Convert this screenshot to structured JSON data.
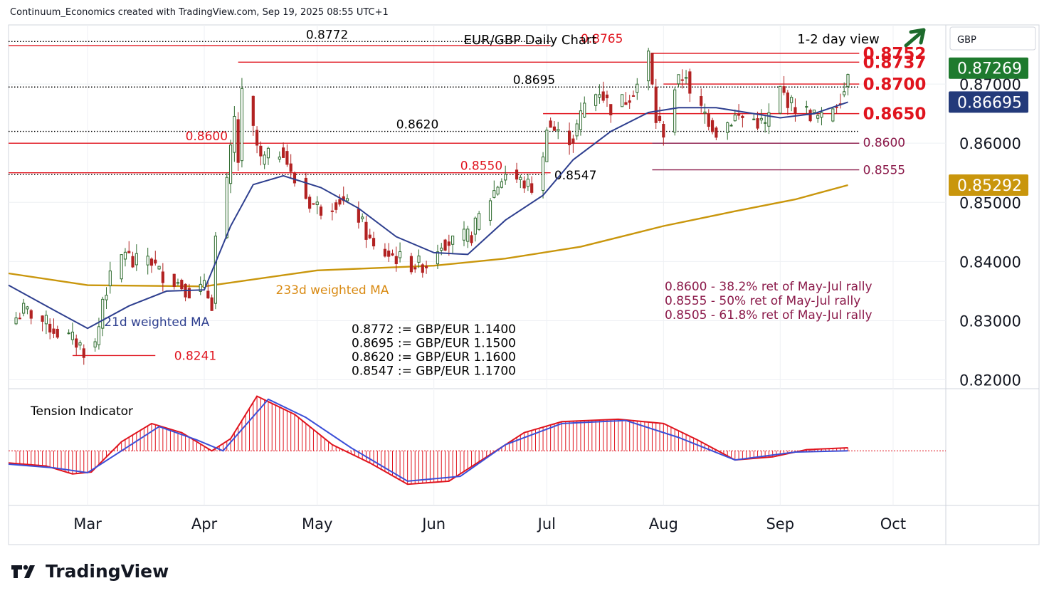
{
  "header": {
    "credit": "Continuum_Economics created with TradingView.com, Sep 19, 2025 08:55 UTC+1"
  },
  "brand": {
    "name": "TradingView"
  },
  "colors": {
    "up": "#2e6b2e",
    "down": "#b22222",
    "bull_fill": "#ffffff",
    "ma21": "#2e3f8f",
    "ma233": "#c9960c",
    "resistance": "#e0141e",
    "support_fib": "#8b1a4a",
    "tension_red": "#e0141e",
    "tension_blue": "#3b4fd8",
    "arrow": "#1d6b2c",
    "last_price_bg": "#1e7a2e",
    "ma21_bg": "#233a7a",
    "ma233_bg": "#c9960c"
  },
  "chart_data": {
    "type": "candlestick",
    "title": "EUR/GBP Daily Chart",
    "view_label": "1-2 day view",
    "view_icon": "up-arrow-icon",
    "currency_label": "GBP",
    "y_ticks": [
      "0.86000",
      "0.85000",
      "0.84000",
      "0.83000",
      "0.82000"
    ],
    "y_tick_values": [
      0.86,
      0.85,
      0.84,
      0.83,
      0.82
    ],
    "y_tick_partial": {
      "label": "0.87000",
      "value": 0.87
    },
    "ylim": [
      0.8185,
      0.88
    ],
    "x_ticks": [
      {
        "label": "Mar",
        "date": "2025-03-01"
      },
      {
        "label": "Apr",
        "date": "2025-04-01"
      },
      {
        "label": "May",
        "date": "2025-05-01"
      },
      {
        "label": "Jun",
        "date": "2025-06-01"
      },
      {
        "label": "Jul",
        "date": "2025-07-01"
      },
      {
        "label": "Aug",
        "date": "2025-08-01"
      },
      {
        "label": "Sep",
        "date": "2025-09-01"
      },
      {
        "label": "Oct",
        "date": "2025-10-01"
      }
    ],
    "xlim": [
      "2025-02-08",
      "2025-10-15"
    ],
    "price_badges": [
      {
        "label": "0.87269",
        "value": 0.87269,
        "kind": "last"
      },
      {
        "label": "0.86695",
        "value": 0.86695,
        "kind": "ma21"
      },
      {
        "label": "0.85292",
        "value": 0.85292,
        "kind": "ma233"
      }
    ],
    "series_labels": {
      "ma21": "21d weighted MA",
      "ma233": "233d weighted MA"
    },
    "levels": [
      {
        "label": "0.8772",
        "value": 0.8772,
        "style": "dotted",
        "from": "2025-02-08",
        "to": "2025-07-02",
        "label_date": "2025-04-28",
        "color": "#000000",
        "size": "m"
      },
      {
        "label": "0.8765",
        "value": 0.8765,
        "style": "solid",
        "from": "2025-02-08",
        "to": "2025-07-02",
        "label_date": "2025-07-10",
        "color": "#e0141e",
        "size": "m"
      },
      {
        "label": "0.8752",
        "value": 0.8752,
        "style": "solid",
        "from": "2025-07-29",
        "to": "2025-09-22",
        "label_date": "2025-09-23",
        "color": "#e0141e",
        "size": "l"
      },
      {
        "label": "0.8737",
        "value": 0.8737,
        "style": "solid",
        "from": "2025-04-10",
        "to": "2025-09-22",
        "label_date": "2025-09-23",
        "color": "#e0141e",
        "size": "l"
      },
      {
        "label": "0.8700",
        "value": 0.87,
        "style": "solid",
        "from": "2025-08-01",
        "to": "2025-09-22",
        "label_date": "2025-09-23",
        "color": "#e0141e",
        "size": "l"
      },
      {
        "label": "0.8695",
        "value": 0.8695,
        "style": "dotted",
        "from": "2025-02-08",
        "to": "2025-09-22",
        "label_date": "2025-06-22",
        "color": "#000000",
        "size": "m"
      },
      {
        "label": "0.8650",
        "value": 0.865,
        "style": "solid",
        "from": "2025-06-30",
        "to": "2025-09-22",
        "label_date": "2025-09-23",
        "color": "#e0141e",
        "size": "l"
      },
      {
        "label": "0.8620",
        "value": 0.862,
        "style": "dotted",
        "from": "2025-02-08",
        "to": "2025-09-22",
        "label_date": "2025-05-22",
        "color": "#000000",
        "size": "m"
      },
      {
        "label": "0.8600",
        "value": 0.86,
        "style": "solid",
        "from": "2025-02-08",
        "to": "2025-07-29",
        "label_date": "2025-03-27",
        "color": "#e0141e",
        "size": "m"
      },
      {
        "label": "0.8600",
        "value": 0.86,
        "style": "solid",
        "from": "2025-07-29",
        "to": "2025-09-22",
        "label_date": "2025-09-23",
        "color": "#8b1a4a",
        "size": "m"
      },
      {
        "label": "0.8555",
        "value": 0.8555,
        "style": "solid",
        "from": "2025-07-29",
        "to": "2025-09-22",
        "label_date": "2025-09-23",
        "color": "#8b1a4a",
        "size": "m"
      },
      {
        "label": "0.8550",
        "value": 0.855,
        "style": "solid",
        "from": "2025-02-08",
        "to": "2025-07-02",
        "label_date": "2025-06-08",
        "color": "#e0141e",
        "size": "m"
      },
      {
        "label": "0.8547",
        "value": 0.8547,
        "style": "dotted",
        "from": "2025-02-08",
        "to": "2025-07-01",
        "label_date": "2025-07-03",
        "color": "#000000",
        "size": "m"
      },
      {
        "label": "0.8241",
        "value": 0.8241,
        "style": "solid",
        "from": "2025-02-25",
        "to": "2025-03-19",
        "label_date": "2025-03-24",
        "color": "#e0141e",
        "size": "m"
      }
    ],
    "annotations_conversion": [
      "0.8772 := GBP/EUR 1.1400",
      "0.8695 := GBP/EUR 1.1500",
      "0.8620 := GBP/EUR 1.1600",
      "0.8547 := GBP/EUR 1.1700"
    ],
    "annotations_fib": [
      "0.8600 - 38.2% ret of May-Jul rally",
      "0.8555 - 50% ret of May-Jul rally",
      "0.8505 - 61.8% ret of May-Jul rally"
    ],
    "ohlc_anchors": [
      {
        "date": "2025-02-10",
        "close": 0.8305
      },
      {
        "date": "2025-02-12",
        "close": 0.8318
      },
      {
        "date": "2025-02-14",
        "close": 0.8312
      },
      {
        "date": "2025-02-18",
        "close": 0.8295
      },
      {
        "date": "2025-02-21",
        "close": 0.828
      },
      {
        "date": "2025-02-25",
        "close": 0.8268
      },
      {
        "date": "2025-02-27",
        "close": 0.8258
      },
      {
        "date": "2025-02-28",
        "close": 0.825
      },
      {
        "date": "2025-03-03",
        "close": 0.826
      },
      {
        "date": "2025-03-04",
        "close": 0.829
      },
      {
        "date": "2025-03-05",
        "close": 0.8338
      },
      {
        "date": "2025-03-07",
        "close": 0.837
      },
      {
        "date": "2025-03-11",
        "close": 0.842
      },
      {
        "date": "2025-03-13",
        "close": 0.8395
      },
      {
        "date": "2025-03-17",
        "close": 0.841
      },
      {
        "date": "2025-03-20",
        "close": 0.8382
      },
      {
        "date": "2025-03-25",
        "close": 0.8365
      },
      {
        "date": "2025-03-28",
        "close": 0.835
      },
      {
        "date": "2025-04-01",
        "close": 0.8355
      },
      {
        "date": "2025-04-03",
        "close": 0.833
      },
      {
        "date": "2025-04-04",
        "close": 0.844
      },
      {
        "date": "2025-04-07",
        "close": 0.853
      },
      {
        "date": "2025-04-09",
        "close": 0.864
      },
      {
        "date": "2025-04-10",
        "close": 0.857
      },
      {
        "date": "2025-04-11",
        "close": 0.868
      },
      {
        "date": "2025-04-14",
        "close": 0.862
      },
      {
        "date": "2025-04-16",
        "close": 0.857
      },
      {
        "date": "2025-04-22",
        "close": 0.859
      },
      {
        "date": "2025-04-24",
        "close": 0.8545
      },
      {
        "date": "2025-04-29",
        "close": 0.85
      },
      {
        "date": "2025-05-02",
        "close": 0.849
      },
      {
        "date": "2025-05-07",
        "close": 0.8505
      },
      {
        "date": "2025-05-12",
        "close": 0.8475
      },
      {
        "date": "2025-05-16",
        "close": 0.842
      },
      {
        "date": "2025-05-21",
        "close": 0.841
      },
      {
        "date": "2025-05-26",
        "close": 0.8395
      },
      {
        "date": "2025-05-30",
        "close": 0.8395
      },
      {
        "date": "2025-06-03",
        "close": 0.8435
      },
      {
        "date": "2025-06-06",
        "close": 0.8432
      },
      {
        "date": "2025-06-11",
        "close": 0.8445
      },
      {
        "date": "2025-06-13",
        "close": 0.8475
      },
      {
        "date": "2025-06-18",
        "close": 0.853
      },
      {
        "date": "2025-06-20",
        "close": 0.855
      },
      {
        "date": "2025-06-24",
        "close": 0.8535
      },
      {
        "date": "2025-06-27",
        "close": 0.8525
      },
      {
        "date": "2025-06-30",
        "close": 0.857
      },
      {
        "date": "2025-07-01",
        "close": 0.8635
      },
      {
        "date": "2025-07-04",
        "close": 0.8615
      },
      {
        "date": "2025-07-08",
        "close": 0.8608
      },
      {
        "date": "2025-07-11",
        "close": 0.8665
      },
      {
        "date": "2025-07-15",
        "close": 0.869
      },
      {
        "date": "2025-07-18",
        "close": 0.866
      },
      {
        "date": "2025-07-22",
        "close": 0.8675
      },
      {
        "date": "2025-07-25",
        "close": 0.87
      },
      {
        "date": "2025-07-28",
        "close": 0.875
      },
      {
        "date": "2025-07-30",
        "close": 0.864
      },
      {
        "date": "2025-08-01",
        "close": 0.862
      },
      {
        "date": "2025-08-04",
        "close": 0.8695
      },
      {
        "date": "2025-08-07",
        "close": 0.872
      },
      {
        "date": "2025-08-08",
        "close": 0.8675
      },
      {
        "date": "2025-08-12",
        "close": 0.865
      },
      {
        "date": "2025-08-15",
        "close": 0.862
      },
      {
        "date": "2025-08-20",
        "close": 0.8645
      },
      {
        "date": "2025-08-25",
        "close": 0.864
      },
      {
        "date": "2025-08-28",
        "close": 0.863
      },
      {
        "date": "2025-09-01",
        "close": 0.869
      },
      {
        "date": "2025-09-04",
        "close": 0.8665
      },
      {
        "date": "2025-09-09",
        "close": 0.865
      },
      {
        "date": "2025-09-12",
        "close": 0.864
      },
      {
        "date": "2025-09-16",
        "close": 0.867
      },
      {
        "date": "2025-09-18",
        "close": 0.869
      },
      {
        "date": "2025-09-19",
        "close": 0.87269
      }
    ],
    "ma21_anchors": [
      {
        "date": "2025-02-08",
        "value": 0.836
      },
      {
        "date": "2025-02-20",
        "value": 0.8318
      },
      {
        "date": "2025-03-01",
        "value": 0.8287
      },
      {
        "date": "2025-03-12",
        "value": 0.8325
      },
      {
        "date": "2025-03-22",
        "value": 0.835
      },
      {
        "date": "2025-04-01",
        "value": 0.8352
      },
      {
        "date": "2025-04-08",
        "value": 0.846
      },
      {
        "date": "2025-04-14",
        "value": 0.853
      },
      {
        "date": "2025-04-22",
        "value": 0.8545
      },
      {
        "date": "2025-05-02",
        "value": 0.8525
      },
      {
        "date": "2025-05-12",
        "value": 0.849
      },
      {
        "date": "2025-05-22",
        "value": 0.8442
      },
      {
        "date": "2025-06-01",
        "value": 0.8415
      },
      {
        "date": "2025-06-10",
        "value": 0.8412
      },
      {
        "date": "2025-06-20",
        "value": 0.847
      },
      {
        "date": "2025-06-30",
        "value": 0.8512
      },
      {
        "date": "2025-07-08",
        "value": 0.8572
      },
      {
        "date": "2025-07-18",
        "value": 0.862
      },
      {
        "date": "2025-07-28",
        "value": 0.8652
      },
      {
        "date": "2025-08-05",
        "value": 0.866
      },
      {
        "date": "2025-08-15",
        "value": 0.866
      },
      {
        "date": "2025-08-25",
        "value": 0.865
      },
      {
        "date": "2025-09-01",
        "value": 0.8643
      },
      {
        "date": "2025-09-10",
        "value": 0.865
      },
      {
        "date": "2025-09-19",
        "value": 0.86695
      }
    ],
    "ma233_anchors": [
      {
        "date": "2025-02-08",
        "value": 0.838
      },
      {
        "date": "2025-03-01",
        "value": 0.836
      },
      {
        "date": "2025-04-01",
        "value": 0.8358
      },
      {
        "date": "2025-05-01",
        "value": 0.8385
      },
      {
        "date": "2025-06-01",
        "value": 0.8393
      },
      {
        "date": "2025-06-20",
        "value": 0.8405
      },
      {
        "date": "2025-07-10",
        "value": 0.8425
      },
      {
        "date": "2025-08-01",
        "value": 0.846
      },
      {
        "date": "2025-08-20",
        "value": 0.8485
      },
      {
        "date": "2025-09-05",
        "value": 0.8505
      },
      {
        "date": "2025-09-19",
        "value": 0.85292
      }
    ],
    "tension_indicator": {
      "title": "Tension Indicator",
      "ylim": [
        -0.9,
        1.0
      ],
      "zero": 0,
      "fast_anchors": [
        {
          "date": "2025-02-08",
          "value": -0.2
        },
        {
          "date": "2025-02-18",
          "value": -0.25
        },
        {
          "date": "2025-02-25",
          "value": -0.38
        },
        {
          "date": "2025-03-02",
          "value": -0.35
        },
        {
          "date": "2025-03-10",
          "value": 0.15
        },
        {
          "date": "2025-03-18",
          "value": 0.45
        },
        {
          "date": "2025-03-26",
          "value": 0.3
        },
        {
          "date": "2025-04-03",
          "value": 0.0
        },
        {
          "date": "2025-04-08",
          "value": 0.2
        },
        {
          "date": "2025-04-15",
          "value": 0.9
        },
        {
          "date": "2025-04-25",
          "value": 0.6
        },
        {
          "date": "2025-05-05",
          "value": 0.1
        },
        {
          "date": "2025-05-15",
          "value": -0.2
        },
        {
          "date": "2025-05-25",
          "value": -0.55
        },
        {
          "date": "2025-06-05",
          "value": -0.5
        },
        {
          "date": "2025-06-15",
          "value": -0.1
        },
        {
          "date": "2025-06-25",
          "value": 0.3
        },
        {
          "date": "2025-07-05",
          "value": 0.48
        },
        {
          "date": "2025-07-20",
          "value": 0.52
        },
        {
          "date": "2025-08-01",
          "value": 0.45
        },
        {
          "date": "2025-08-10",
          "value": 0.18
        },
        {
          "date": "2025-08-20",
          "value": -0.15
        },
        {
          "date": "2025-08-30",
          "value": -0.1
        },
        {
          "date": "2025-09-08",
          "value": 0.02
        },
        {
          "date": "2025-09-19",
          "value": 0.05
        }
      ],
      "slow_anchors": [
        {
          "date": "2025-02-08",
          "value": -0.22
        },
        {
          "date": "2025-02-20",
          "value": -0.28
        },
        {
          "date": "2025-03-01",
          "value": -0.36
        },
        {
          "date": "2025-03-10",
          "value": 0.0
        },
        {
          "date": "2025-03-20",
          "value": 0.4
        },
        {
          "date": "2025-03-30",
          "value": 0.18
        },
        {
          "date": "2025-04-06",
          "value": 0.0
        },
        {
          "date": "2025-04-18",
          "value": 0.85
        },
        {
          "date": "2025-04-28",
          "value": 0.55
        },
        {
          "date": "2025-05-10",
          "value": 0.05
        },
        {
          "date": "2025-05-25",
          "value": -0.5
        },
        {
          "date": "2025-06-08",
          "value": -0.42
        },
        {
          "date": "2025-06-20",
          "value": 0.1
        },
        {
          "date": "2025-07-05",
          "value": 0.45
        },
        {
          "date": "2025-07-22",
          "value": 0.5
        },
        {
          "date": "2025-08-05",
          "value": 0.22
        },
        {
          "date": "2025-08-20",
          "value": -0.15
        },
        {
          "date": "2025-09-05",
          "value": -0.02
        },
        {
          "date": "2025-09-19",
          "value": 0.0
        }
      ]
    }
  }
}
